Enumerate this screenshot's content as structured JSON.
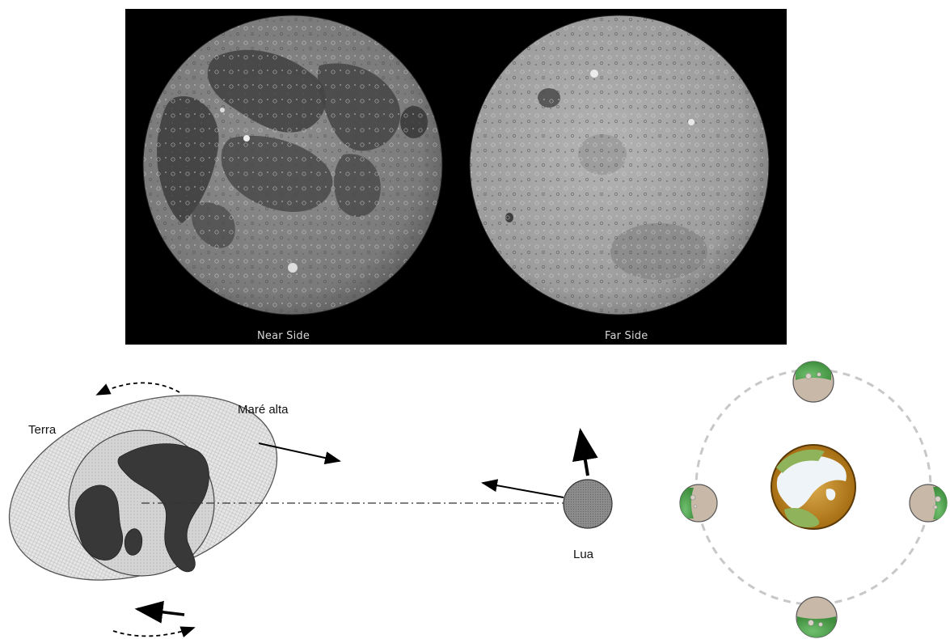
{
  "photo": {
    "near_label": "Near Side",
    "far_label": "Far Side"
  },
  "tidal_diagram": {
    "earth_label": "Terra",
    "tide_label": "Maré alta",
    "moon_label": "Lua"
  },
  "colors": {
    "photo_background": "#000000",
    "tidal_bulge": "#e4e4e4",
    "earth_ocean": "#d2d2d2",
    "earth_land": "#383838",
    "moon_fill": "#8a8a8a",
    "orbit_dash": "#c8c8c8",
    "earth_center": "#b07d1a",
    "earth_ice": "#eef4f8",
    "earth_vegetation": "#8fb35a"
  }
}
